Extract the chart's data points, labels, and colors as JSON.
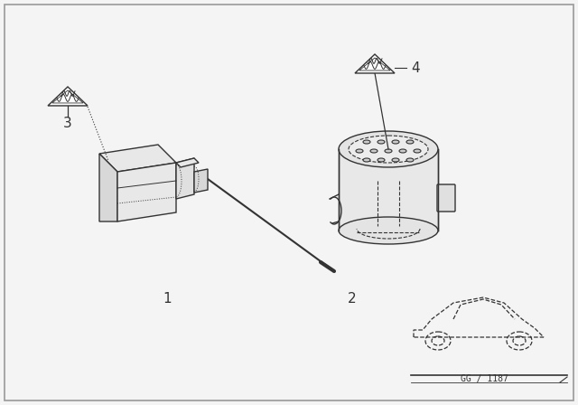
{
  "bg_color": "#f4f4f4",
  "line_color": "#333333",
  "face_color": "#f0f0f0",
  "dark_face": "#e0e0e0",
  "label1": "1",
  "label2": "2",
  "label3": "3",
  "label4": "4",
  "part_num": "GG / 1187",
  "component_lw": 1.0,
  "border_lw": 1.2
}
